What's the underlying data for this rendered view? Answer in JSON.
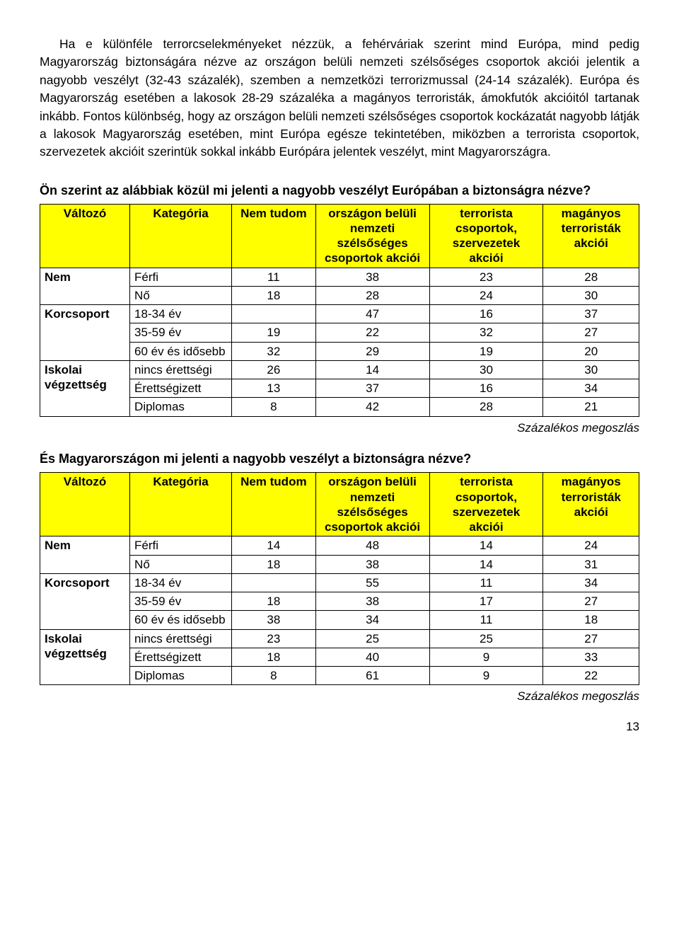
{
  "paragraph": "Ha e különféle terrorcselekményeket nézzük, a fehérváriak szerint mind Európa, mind pedig Magyarország biztonságára nézve az országon belüli nemzeti szélsőséges csoportok akciói jelentik a nagyobb veszélyt (32-43 százalék), szemben a nemzetközi terrorizmussal (24-14 százalék). Európa és Magyarország esetében a lakosok 28-29 százaléka a magányos terroristák, ámokfutók akcióitól tartanak inkább. Fontos különbség, hogy az országon belüli nemzeti szélsőséges csoportok kockázatát nagyobb látják a lakosok Magyarország esetében, mint Európa egésze tekintetében, miközben a terrorista csoportok, szervezetek akcióit szerintük sokkal inkább Európára jelentek veszélyt, mint Magyarországra.",
  "table_headers": {
    "valtozo": "Változó",
    "kategoria": "Kategória",
    "nemtudom": "Nem tudom",
    "orszagon": "országon belüli nemzeti szélsőséges csoportok akciói",
    "terrorista": "terrorista csoportok, szervezetek akciói",
    "maganyos": "magányos terroristák akciói"
  },
  "var_labels": {
    "nem": "Nem",
    "korcsoport": "Korcsoport",
    "iskolai": "Iskolai végzettség"
  },
  "cat_labels": {
    "ferfi": "Férfi",
    "no": "Nő",
    "kor1": "18-34 év",
    "kor2": "35-59 év",
    "kor3": "60 év és idősebb",
    "edu1": "nincs érettségi",
    "edu2": "Érettségizett",
    "edu3": "Diplomas"
  },
  "table1": {
    "title": "Ön szerint az alábbiak közül mi jelenti a nagyobb veszélyt Európában a biztonságra nézve?",
    "rows": {
      "ferfi": {
        "nt": "11",
        "a": "38",
        "b": "23",
        "c": "28"
      },
      "no": {
        "nt": "18",
        "a": "28",
        "b": "24",
        "c": "30"
      },
      "kor1": {
        "nt": "",
        "a": "47",
        "b": "16",
        "c": "37"
      },
      "kor2": {
        "nt": "19",
        "a": "22",
        "b": "32",
        "c": "27"
      },
      "kor3": {
        "nt": "32",
        "a": "29",
        "b": "19",
        "c": "20"
      },
      "edu1": {
        "nt": "26",
        "a": "14",
        "b": "30",
        "c": "30"
      },
      "edu2": {
        "nt": "13",
        "a": "37",
        "b": "16",
        "c": "34"
      },
      "edu3": {
        "nt": "8",
        "a": "42",
        "b": "28",
        "c": "21"
      }
    }
  },
  "table2": {
    "title": "És Magyarországon mi jelenti a nagyobb veszélyt a biztonságra nézve?",
    "rows": {
      "ferfi": {
        "nt": "14",
        "a": "48",
        "b": "14",
        "c": "24"
      },
      "no": {
        "nt": "18",
        "a": "38",
        "b": "14",
        "c": "31"
      },
      "kor1": {
        "nt": "",
        "a": "55",
        "b": "11",
        "c": "34"
      },
      "kor2": {
        "nt": "18",
        "a": "38",
        "b": "17",
        "c": "27"
      },
      "kor3": {
        "nt": "38",
        "a": "34",
        "b": "11",
        "c": "18"
      },
      "edu1": {
        "nt": "23",
        "a": "25",
        "b": "25",
        "c": "27"
      },
      "edu2": {
        "nt": "18",
        "a": "40",
        "b": "9",
        "c": "33"
      },
      "edu3": {
        "nt": "8",
        "a": "61",
        "b": "9",
        "c": "22"
      }
    }
  },
  "footnote": "Százalékos megoszlás",
  "page_number": "13"
}
